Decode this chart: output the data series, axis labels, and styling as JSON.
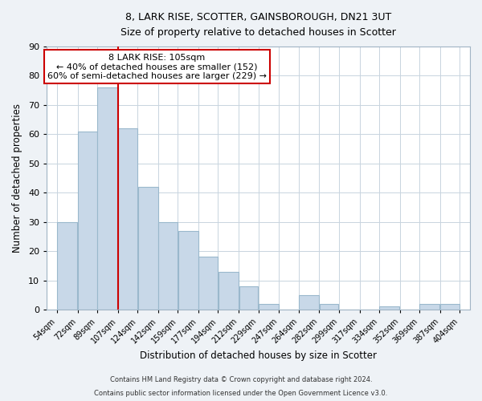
{
  "title1": "8, LARK RISE, SCOTTER, GAINSBOROUGH, DN21 3UT",
  "title2": "Size of property relative to detached houses in Scotter",
  "xlabel": "Distribution of detached houses by size in Scotter",
  "ylabel": "Number of detached properties",
  "bar_color": "#c8d8e8",
  "bar_edge_color": "#9ab8cc",
  "vline_x": 107,
  "vline_color": "#cc0000",
  "annotation_title": "8 LARK RISE: 105sqm",
  "annotation_line1": "← 40% of detached houses are smaller (152)",
  "annotation_line2": "60% of semi-detached houses are larger (229) →",
  "bins": [
    54,
    72,
    89,
    107,
    124,
    142,
    159,
    177,
    194,
    212,
    229,
    247,
    264,
    282,
    299,
    317,
    334,
    352,
    369,
    387,
    404
  ],
  "counts": [
    30,
    61,
    76,
    62,
    42,
    30,
    27,
    18,
    13,
    8,
    2,
    0,
    5,
    2,
    0,
    0,
    1,
    0,
    2,
    2
  ],
  "ylim": [
    0,
    90
  ],
  "yticks": [
    0,
    10,
    20,
    30,
    40,
    50,
    60,
    70,
    80,
    90
  ],
  "footer1": "Contains HM Land Registry data © Crown copyright and database right 2024.",
  "footer2": "Contains public sector information licensed under the Open Government Licence v3.0.",
  "background_color": "#eef2f6",
  "plot_background": "#ffffff",
  "grid_color": "#c8d4df"
}
